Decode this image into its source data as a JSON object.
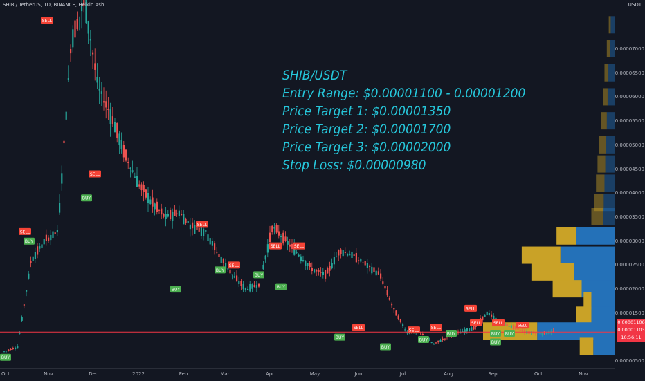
{
  "header": {
    "symbol_line": "SHIB / TetherUS, 1D, BINANCE, Heikin Ashi"
  },
  "price_axis": {
    "unit": "USDT",
    "ticks": [
      "0.00007000",
      "0.00006500",
      "0.00006000",
      "0.00005500",
      "0.00005000",
      "0.00004500",
      "0.00004000",
      "0.00003500",
      "0.00003000",
      "0.00002500",
      "0.00002000",
      "0.00001500",
      "0.00000500"
    ],
    "current_price": "0.00001106",
    "secondary_price": "0.00001103",
    "countdown": "10:56:11"
  },
  "time_axis": {
    "ticks": [
      "Oct",
      "Nov",
      "Dec",
      "2022",
      "Feb",
      "Mar",
      "Apr",
      "May",
      "Jun",
      "Jul",
      "Aug",
      "Sep",
      "Oct",
      "Nov"
    ]
  },
  "overlay": {
    "lines": [
      "SHIB/USDT",
      "Entry Range: $0.00001100 - 0.00001200",
      "Price Target 1: $0.00001350",
      "Price Target 2: $0.00001700",
      "Price Target 3: $0.00002000",
      "Stop Loss: $0.00000980"
    ]
  },
  "signals": {
    "buy_label": "BUY",
    "sell_label": "SELL"
  },
  "colors": {
    "background": "#131722",
    "up_candle": "#26a69a",
    "down_candle": "#ef5350",
    "overlay_text": "#26c6da",
    "current_price_line": "#f23645",
    "volume_profile_gold": "#c9a227",
    "volume_profile_blue": "#2471b8",
    "buy_label_bg": "#4caf50",
    "sell_label_bg": "#f44336"
  },
  "chart_data": {
    "type": "candlestick",
    "title": "SHIB / TetherUS, 1D, BINANCE, Heikin Ashi",
    "x_label": "",
    "y_label": "USDT",
    "y_range": [
      3e-06,
      8e-05
    ],
    "x_ticks": [
      "Oct",
      "Nov",
      "Dec",
      "2022",
      "Feb",
      "Mar",
      "Apr",
      "May",
      "Jun",
      "Jul",
      "Aug",
      "Sep",
      "Oct",
      "Nov"
    ],
    "price_path_approx": [
      [
        "Oct",
        7e-06
      ],
      [
        "Oct",
        8e-06
      ],
      [
        "Oct",
        2.6e-05
      ],
      [
        "Oct",
        3e-05
      ],
      [
        "Oct",
        3.2e-05
      ],
      [
        "Nov",
        7.2e-05
      ],
      [
        "Nov",
        8e-05
      ],
      [
        "Nov",
        6.2e-05
      ],
      [
        "Nov",
        5.6e-05
      ],
      [
        "Nov",
        4.8e-05
      ],
      [
        "Dec",
        4.2e-05
      ],
      [
        "Dec",
        3.8e-05
      ],
      [
        "Dec",
        3.5e-05
      ],
      [
        "Dec",
        3.6e-05
      ],
      [
        "Dec",
        3.3e-05
      ],
      [
        "2022",
        3.2e-05
      ],
      [
        "2022",
        2.7e-05
      ],
      [
        "2022",
        2.3e-05
      ],
      [
        "2022",
        2e-05
      ],
      [
        "2022",
        2.1e-05
      ],
      [
        "Feb",
        3.3e-05
      ],
      [
        "Feb",
        3e-05
      ],
      [
        "Feb",
        2.7e-05
      ],
      [
        "Mar",
        2.4e-05
      ],
      [
        "Mar",
        2.3e-05
      ],
      [
        "Apr",
        2.8e-05
      ],
      [
        "Apr",
        2.7e-05
      ],
      [
        "Apr",
        2.5e-05
      ],
      [
        "Apr",
        2.3e-05
      ],
      [
        "May",
        1.6e-05
      ],
      [
        "May",
        1.1e-05
      ],
      [
        "Jun",
        1.1e-05
      ],
      [
        "Jun",
        8.5e-06
      ],
      [
        "Jul",
        1e-05
      ],
      [
        "Jul",
        1.1e-05
      ],
      [
        "Aug",
        1.2e-05
      ],
      [
        "Aug",
        1.5e-05
      ],
      [
        "Aug",
        1.3e-05
      ],
      [
        "Sep",
        1.2e-05
      ],
      [
        "Sep",
        1.1e-05
      ],
      [
        "Oct",
        1.08e-05
      ],
      [
        "Oct",
        1.11e-05
      ]
    ],
    "signals": [
      {
        "type": "BUY",
        "x": "Oct",
        "price": 5.8e-06
      },
      {
        "type": "SELL",
        "x": "Oct",
        "price": 3.2e-05
      },
      {
        "type": "BUY",
        "x": "Oct",
        "price": 3e-05
      },
      {
        "type": "SELL",
        "x": "Nov",
        "price": 7.6e-05
      },
      {
        "type": "SELL",
        "x": "Dec",
        "price": 4.4e-05
      },
      {
        "type": "BUY",
        "x": "Dec",
        "price": 3.9e-05
      },
      {
        "type": "BUY",
        "x": "2022",
        "price": 2e-05
      },
      {
        "type": "SELL",
        "x": "Feb",
        "price": 3.35e-05
      },
      {
        "type": "BUY",
        "x": "Feb",
        "price": 2.4e-05
      },
      {
        "type": "SELL",
        "x": "Mar",
        "price": 2.5e-05
      },
      {
        "type": "BUY",
        "x": "Mar",
        "price": 2.3e-05
      },
      {
        "type": "SELL",
        "x": "Apr",
        "price": 2.9e-05
      },
      {
        "type": "BUY",
        "x": "Apr",
        "price": 2.05e-05
      },
      {
        "type": "SELL",
        "x": "Apr",
        "price": 2.9e-05
      },
      {
        "type": "SELL",
        "x": "May",
        "price": 1.2e-05
      },
      {
        "type": "BUY",
        "x": "May",
        "price": 1e-05
      },
      {
        "type": "BUY",
        "x": "Jun",
        "price": 8e-06
      },
      {
        "type": "SELL",
        "x": "Jul",
        "price": 1.15e-05
      },
      {
        "type": "BUY",
        "x": "Jul",
        "price": 9.5e-06
      },
      {
        "type": "SELL",
        "x": "Jul",
        "price": 1.2e-05
      },
      {
        "type": "BUY",
        "x": "Aug",
        "price": 1.08e-05
      },
      {
        "type": "SELL",
        "x": "Aug",
        "price": 1.6e-05
      },
      {
        "type": "SELL",
        "x": "Aug",
        "price": 1.3e-05
      },
      {
        "type": "BUY",
        "x": "Sep",
        "price": 1.08e-05
      },
      {
        "type": "SELL",
        "x": "Sep",
        "price": 1.3e-05
      },
      {
        "type": "BUY",
        "x": "Sep",
        "price": 1.08e-05
      },
      {
        "type": "SELL",
        "x": "Sep",
        "price": 1.25e-05
      },
      {
        "type": "BUY",
        "x": "Sep",
        "price": 9e-06
      }
    ],
    "volume_profile_bins": [
      {
        "price_bin": 7.5e-05,
        "gold": 0.05,
        "blue": 0.1
      },
      {
        "price_bin": 7e-05,
        "gold": 0.08,
        "blue": 0.12
      },
      {
        "price_bin": 6.5e-05,
        "gold": 0.1,
        "blue": 0.16
      },
      {
        "price_bin": 6e-05,
        "gold": 0.12,
        "blue": 0.18
      },
      {
        "price_bin": 5.5e-05,
        "gold": 0.15,
        "blue": 0.2
      },
      {
        "price_bin": 5e-05,
        "gold": 0.18,
        "blue": 0.22
      },
      {
        "price_bin": 4.6e-05,
        "gold": 0.2,
        "blue": 0.24
      },
      {
        "price_bin": 4.2e-05,
        "gold": 0.22,
        "blue": 0.26
      },
      {
        "price_bin": 3.8e-05,
        "gold": 0.25,
        "blue": 0.28
      },
      {
        "price_bin": 3.5e-05,
        "gold": 0.3,
        "blue": 0.3
      },
      {
        "price_bin": 3.1e-05,
        "gold": 0.5,
        "blue": 1.0
      },
      {
        "price_bin": 2.7e-05,
        "gold": 1.0,
        "blue": 1.4
      },
      {
        "price_bin": 2.35e-05,
        "gold": 1.1,
        "blue": 1.05
      },
      {
        "price_bin": 2e-05,
        "gold": 0.75,
        "blue": 0.85
      },
      {
        "price_bin": 1.75e-05,
        "gold": 0.2,
        "blue": 0.6
      },
      {
        "price_bin": 1.45e-05,
        "gold": 0.4,
        "blue": 0.6
      },
      {
        "price_bin": 1.12e-05,
        "gold": 1.4,
        "blue": 2.0
      },
      {
        "price_bin": 8e-06,
        "gold": 0.35,
        "blue": 0.55
      }
    ],
    "horizontal_lines": [
      {
        "price": 1.106e-05,
        "color": "#f23645"
      }
    ],
    "grid": false
  }
}
